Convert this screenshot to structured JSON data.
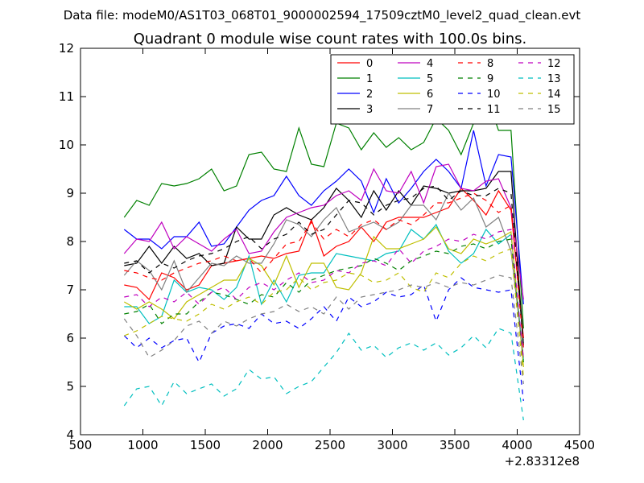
{
  "chart_data": {
    "type": "line",
    "suptitle": "Data file: modeM0/AS1T03_068T01_9000002594_17509cztM0_level2_quad_clean.evt",
    "title": "Quadrant 0 module wise count rates with 100.0s bins.",
    "xlabel": "",
    "ylabel": "",
    "x_offset_label": "+2.83312e8",
    "xlim": [
      500,
      4500
    ],
    "ylim": [
      4,
      12
    ],
    "x_ticks": [
      500,
      1000,
      1500,
      2000,
      2500,
      3000,
      3500,
      4000,
      4500
    ],
    "y_ticks": [
      4,
      5,
      6,
      7,
      8,
      9,
      10,
      11,
      12
    ],
    "x_tick_labels": [
      "500",
      "1000",
      "1500",
      "2000",
      "2500",
      "3000",
      "3500",
      "4000",
      "4500"
    ],
    "y_tick_labels": [
      "4",
      "5",
      "6",
      "7",
      "8",
      "9",
      "10",
      "11",
      "12"
    ],
    "grid": false,
    "legend_position": "top-right",
    "legend_columns": 4,
    "x": [
      850,
      950,
      1050,
      1150,
      1250,
      1350,
      1450,
      1550,
      1650,
      1750,
      1850,
      1950,
      2050,
      2150,
      2250,
      2350,
      2450,
      2550,
      2650,
      2750,
      2850,
      2950,
      3050,
      3150,
      3250,
      3350,
      3450,
      3550,
      3650,
      3750,
      3850,
      3950,
      4050
    ],
    "series": [
      {
        "name": "0",
        "color": "#ff0000",
        "dash": "solid",
        "values": [
          7.1,
          7.05,
          6.8,
          7.35,
          7.25,
          7.0,
          7.1,
          7.5,
          7.55,
          7.6,
          7.65,
          7.7,
          7.65,
          7.75,
          7.8,
          8.45,
          7.7,
          7.9,
          8.0,
          8.3,
          8.0,
          8.4,
          8.5,
          8.5,
          8.5,
          8.6,
          8.7,
          9.1,
          8.85,
          8.55,
          9.05,
          8.65,
          6.0
        ]
      },
      {
        "name": "1",
        "color": "#008000",
        "dash": "solid",
        "values": [
          8.5,
          8.85,
          8.75,
          9.2,
          9.15,
          9.2,
          9.3,
          9.5,
          9.05,
          9.15,
          9.8,
          9.85,
          9.5,
          9.45,
          10.35,
          9.6,
          9.55,
          10.45,
          10.35,
          9.9,
          10.25,
          9.95,
          10.15,
          9.9,
          10.05,
          10.55,
          10.3,
          9.8,
          10.45,
          11.05,
          10.3,
          10.3,
          6.2
        ]
      },
      {
        "name": "2",
        "color": "#0000ff",
        "dash": "solid",
        "values": [
          8.25,
          8.05,
          8.05,
          7.85,
          8.1,
          8.1,
          8.4,
          7.9,
          7.95,
          8.3,
          8.65,
          8.85,
          8.95,
          9.35,
          8.95,
          8.75,
          9.05,
          9.25,
          9.5,
          9.25,
          8.6,
          9.3,
          8.8,
          9.1,
          9.45,
          9.7,
          9.45,
          9.1,
          10.3,
          9.15,
          9.8,
          9.75,
          6.7
        ]
      },
      {
        "name": "3",
        "color": "#000000",
        "dash": "solid",
        "values": [
          7.5,
          7.55,
          7.9,
          7.55,
          7.9,
          7.65,
          7.75,
          7.5,
          7.55,
          8.3,
          8.05,
          8.05,
          8.55,
          8.7,
          8.55,
          8.45,
          8.7,
          9.1,
          8.85,
          8.5,
          9.05,
          8.65,
          9.05,
          8.75,
          9.15,
          9.1,
          9.0,
          9.05,
          9.05,
          9.1,
          9.45,
          9.45,
          5.85
        ]
      },
      {
        "name": "4",
        "color": "#bf00bf",
        "dash": "solid",
        "values": [
          7.75,
          8.05,
          8.0,
          8.4,
          7.85,
          8.1,
          7.95,
          7.8,
          8.05,
          8.25,
          7.75,
          7.8,
          8.2,
          8.5,
          8.6,
          8.7,
          8.75,
          8.95,
          9.05,
          8.85,
          9.5,
          9.05,
          9.0,
          9.45,
          8.8,
          9.55,
          9.6,
          9.1,
          9.05,
          9.25,
          9.3,
          8.7,
          6.8
        ]
      },
      {
        "name": "5",
        "color": "#00bfbf",
        "dash": "solid",
        "values": [
          6.65,
          6.65,
          6.3,
          6.45,
          7.2,
          6.95,
          7.05,
          7.0,
          6.8,
          7.05,
          7.7,
          6.7,
          7.2,
          6.75,
          7.3,
          7.35,
          7.35,
          7.75,
          7.7,
          7.65,
          7.6,
          7.75,
          7.8,
          8.25,
          8.05,
          8.35,
          7.8,
          7.55,
          7.75,
          8.25,
          7.95,
          8.15,
          5.55
        ]
      },
      {
        "name": "6",
        "color": "#bfbf00",
        "dash": "solid",
        "values": [
          6.75,
          6.6,
          6.75,
          6.6,
          6.4,
          6.75,
          6.9,
          7.05,
          7.2,
          7.2,
          7.65,
          7.5,
          7.1,
          7.7,
          7.05,
          7.55,
          7.55,
          7.05,
          7.0,
          7.35,
          8.1,
          7.85,
          7.85,
          7.95,
          8.05,
          8.3,
          7.85,
          7.75,
          8.05,
          7.95,
          8.05,
          8.2,
          5.4
        ]
      },
      {
        "name": "7",
        "color": "#808080",
        "dash": "solid",
        "values": [
          7.3,
          7.6,
          7.4,
          7.0,
          7.6,
          6.95,
          7.25,
          7.55,
          7.5,
          7.7,
          7.55,
          7.55,
          7.95,
          8.45,
          8.35,
          8.1,
          8.45,
          8.7,
          8.2,
          8.3,
          8.4,
          8.25,
          8.4,
          8.75,
          8.75,
          8.45,
          9.0,
          8.65,
          8.9,
          8.3,
          8.5,
          7.8,
          5.6
        ]
      },
      {
        "name": "8",
        "color": "#ff0000",
        "dash": "dashed",
        "values": [
          7.4,
          7.35,
          7.25,
          7.2,
          7.35,
          7.45,
          7.55,
          7.6,
          7.7,
          7.6,
          7.65,
          7.35,
          7.65,
          7.95,
          8.0,
          8.4,
          8.05,
          8.25,
          8.1,
          8.35,
          8.45,
          8.25,
          8.45,
          8.35,
          8.55,
          8.8,
          8.8,
          8.9,
          9.0,
          8.85,
          8.6,
          8.75,
          5.8
        ]
      },
      {
        "name": "9",
        "color": "#008000",
        "dash": "dashed",
        "values": [
          6.5,
          6.55,
          6.7,
          6.3,
          6.5,
          6.5,
          6.75,
          6.95,
          6.9,
          6.8,
          6.7,
          6.9,
          6.85,
          7.15,
          6.95,
          7.2,
          7.3,
          7.4,
          7.45,
          7.5,
          7.65,
          7.55,
          7.4,
          7.6,
          7.7,
          7.8,
          7.75,
          7.9,
          7.95,
          7.85,
          8.0,
          8.05,
          5.5
        ]
      },
      {
        "name": "10",
        "color": "#0000ff",
        "dash": "dashed",
        "values": [
          6.05,
          5.8,
          6.0,
          5.8,
          5.95,
          6.0,
          5.5,
          6.1,
          6.25,
          6.3,
          6.2,
          6.5,
          6.3,
          6.35,
          6.2,
          6.4,
          6.65,
          6.35,
          6.85,
          6.65,
          6.75,
          6.95,
          6.85,
          6.9,
          7.1,
          6.35,
          7.0,
          7.25,
          7.05,
          7.0,
          6.95,
          7.0,
          4.7
        ]
      },
      {
        "name": "11",
        "color": "#000000",
        "dash": "dashed",
        "values": [
          7.55,
          7.6,
          7.35,
          7.55,
          7.45,
          7.6,
          7.7,
          7.75,
          7.85,
          8.0,
          8.1,
          7.85,
          8.05,
          8.15,
          8.4,
          8.15,
          8.25,
          8.55,
          8.85,
          8.8,
          8.55,
          8.75,
          8.85,
          8.9,
          9.1,
          9.15,
          8.85,
          9.05,
          8.95,
          8.95,
          9.1,
          9.0,
          5.85
        ]
      },
      {
        "name": "12",
        "color": "#bf00bf",
        "dash": "dashed",
        "values": [
          6.85,
          6.9,
          6.65,
          6.85,
          6.75,
          6.95,
          6.7,
          6.95,
          7.05,
          6.8,
          7.05,
          7.15,
          7.0,
          7.2,
          7.35,
          7.15,
          7.2,
          7.4,
          7.35,
          7.55,
          7.6,
          7.5,
          7.85,
          7.55,
          7.8,
          7.9,
          8.05,
          8.0,
          8.15,
          8.05,
          8.2,
          8.25,
          5.55
        ]
      },
      {
        "name": "13",
        "color": "#00bfbf",
        "dash": "dashed",
        "values": [
          4.6,
          4.95,
          5.0,
          4.6,
          5.1,
          4.85,
          4.95,
          5.05,
          4.8,
          4.95,
          5.35,
          5.15,
          5.2,
          4.85,
          5.0,
          5.1,
          5.4,
          5.7,
          6.1,
          5.75,
          5.85,
          5.6,
          5.8,
          5.9,
          5.75,
          5.9,
          5.65,
          5.8,
          6.05,
          5.8,
          6.2,
          6.1,
          4.3
        ]
      },
      {
        "name": "14",
        "color": "#bfbf00",
        "dash": "dashed",
        "values": [
          6.05,
          6.15,
          6.3,
          6.45,
          6.4,
          6.35,
          6.5,
          6.7,
          6.6,
          6.75,
          6.85,
          6.7,
          6.95,
          7.0,
          7.25,
          7.0,
          7.15,
          7.2,
          7.35,
          7.3,
          7.15,
          7.2,
          7.35,
          7.05,
          6.95,
          7.35,
          7.25,
          7.55,
          7.7,
          7.6,
          7.75,
          7.85,
          5.2
        ]
      },
      {
        "name": "15",
        "color": "#808080",
        "dash": "dashed",
        "values": [
          6.4,
          6.05,
          5.6,
          5.75,
          5.95,
          6.25,
          6.35,
          6.1,
          6.35,
          6.25,
          6.4,
          6.5,
          6.55,
          6.7,
          6.55,
          6.65,
          6.5,
          6.85,
          6.6,
          6.85,
          6.9,
          6.95,
          7.0,
          7.1,
          7.05,
          7.15,
          7.05,
          7.15,
          7.1,
          7.2,
          7.3,
          7.25,
          5.05
        ]
      }
    ]
  }
}
